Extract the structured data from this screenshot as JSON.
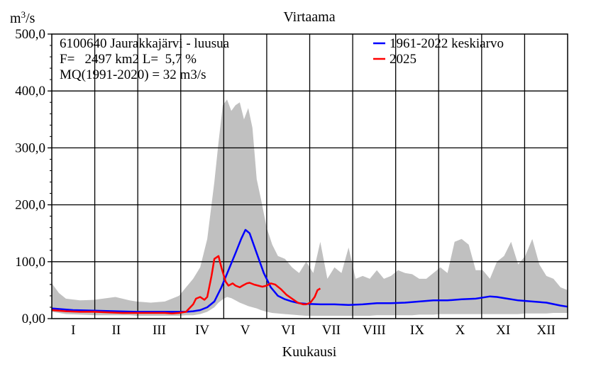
{
  "chart_data": {
    "type": "area",
    "title": "Virtaama",
    "xlabel": "Kuukausi",
    "ylabel": "m3/s",
    "ylabel_base": "m",
    "ylabel_sup": "3",
    "ylabel_suffix": "/s",
    "ylim": [
      0,
      500
    ],
    "xlim": [
      0,
      365
    ],
    "grid": true,
    "legend_position": "top-right",
    "yticks": [
      {
        "value": 0,
        "label": "0,00"
      },
      {
        "value": 100,
        "label": "100,0"
      },
      {
        "value": 200,
        "label": "200,0"
      },
      {
        "value": 300,
        "label": "300,0"
      },
      {
        "value": 400,
        "label": "400,0"
      },
      {
        "value": 500,
        "label": "500,0"
      }
    ],
    "months": [
      "I",
      "II",
      "III",
      "IV",
      "V",
      "VI",
      "VII",
      "VIII",
      "IX",
      "X",
      "XI",
      "XII"
    ],
    "info_lines": [
      "6100640 Jaurakkajärvi - luusua",
      "F=   2497 km2 L=  5,7 %",
      "MQ(1991-2020) = 32 m3/s"
    ],
    "range_band": {
      "color": "#c0c0c0",
      "x": [
        0,
        5,
        10,
        20,
        30,
        45,
        55,
        60,
        70,
        80,
        90,
        95,
        100,
        105,
        110,
        115,
        118,
        121,
        124,
        127,
        130,
        133,
        136,
        139,
        142,
        145,
        148,
        152,
        156,
        160,
        165,
        170,
        175,
        180,
        185,
        190,
        195,
        200,
        205,
        210,
        215,
        220,
        225,
        230,
        235,
        240,
        245,
        250,
        255,
        260,
        265,
        270,
        275,
        280,
        285,
        290,
        295,
        300,
        305,
        310,
        315,
        320,
        325,
        330,
        335,
        340,
        345,
        350,
        355,
        360,
        365
      ],
      "max": [
        62,
        45,
        35,
        32,
        33,
        38,
        32,
        30,
        28,
        30,
        40,
        55,
        70,
        90,
        140,
        240,
        310,
        375,
        385,
        365,
        375,
        380,
        350,
        370,
        335,
        245,
        210,
        160,
        130,
        110,
        105,
        90,
        80,
        100,
        80,
        135,
        70,
        90,
        80,
        125,
        70,
        75,
        70,
        85,
        70,
        75,
        85,
        80,
        78,
        70,
        70,
        80,
        90,
        80,
        135,
        140,
        130,
        85,
        85,
        70,
        100,
        110,
        135,
        95,
        110,
        140,
        95,
        75,
        70,
        55,
        50
      ],
      "min": [
        12,
        10,
        8,
        7,
        6,
        6,
        6,
        5,
        5,
        5,
        5,
        6,
        6,
        8,
        12,
        20,
        28,
        34,
        38,
        36,
        32,
        28,
        25,
        22,
        20,
        18,
        15,
        12,
        10,
        9,
        8,
        7,
        6,
        5,
        5,
        5,
        5,
        5,
        5,
        5,
        5,
        5,
        5,
        6,
        6,
        6,
        6,
        6,
        6,
        7,
        7,
        7,
        8,
        8,
        8,
        8,
        8,
        8,
        8,
        8,
        8,
        8,
        8,
        8,
        9,
        9,
        9,
        9,
        10,
        10,
        10
      ]
    },
    "series": [
      {
        "name": "1961-2022 keskiarvo",
        "color": "#0000ff",
        "x": [
          0,
          15,
          30,
          45,
          60,
          75,
          85,
          95,
          100,
          105,
          110,
          115,
          120,
          125,
          130,
          134,
          137,
          140,
          145,
          150,
          155,
          160,
          165,
          170,
          175,
          180,
          190,
          200,
          210,
          220,
          230,
          240,
          250,
          260,
          270,
          280,
          290,
          300,
          305,
          310,
          315,
          320,
          330,
          340,
          350,
          360,
          365
        ],
        "y": [
          18,
          15,
          14,
          13,
          12,
          12,
          12,
          12,
          13,
          15,
          20,
          30,
          55,
          85,
          115,
          140,
          156,
          150,
          115,
          80,
          55,
          40,
          34,
          30,
          27,
          26,
          25,
          25,
          24,
          25,
          27,
          27,
          28,
          30,
          32,
          32,
          34,
          35,
          37,
          39,
          38,
          36,
          32,
          30,
          28,
          23,
          21
        ]
      },
      {
        "name": "2025",
        "color": "#ff0000",
        "x": [
          0,
          10,
          20,
          30,
          40,
          50,
          60,
          70,
          80,
          85,
          90,
          95,
          100,
          102,
          105,
          108,
          110,
          113,
          115,
          118,
          120,
          123,
          125,
          128,
          130,
          133,
          135,
          138,
          140,
          143,
          146,
          149,
          152,
          155,
          158,
          162,
          166,
          170,
          174,
          178,
          180,
          183,
          186,
          188,
          190
        ],
        "y": [
          15,
          13,
          12,
          12,
          11,
          10,
          10,
          10,
          10,
          9,
          10,
          12,
          25,
          35,
          38,
          33,
          38,
          75,
          105,
          110,
          90,
          65,
          58,
          62,
          58,
          55,
          58,
          62,
          63,
          60,
          58,
          56,
          58,
          62,
          60,
          52,
          42,
          35,
          28,
          25,
          25,
          28,
          38,
          50,
          53
        ]
      }
    ]
  }
}
